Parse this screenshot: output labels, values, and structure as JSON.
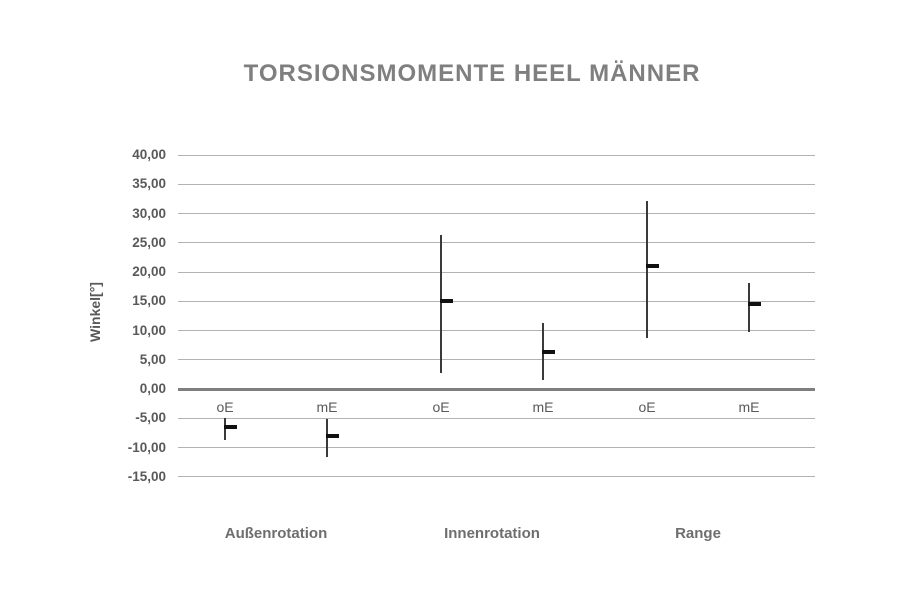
{
  "title": "TORSIONSMOMENTE HEEL MÄNNER",
  "chart_data": {
    "type": "scatter",
    "subtype": "mean-with-error-bars",
    "title": "TORSIONSMOMENTE HEEL MÄNNER",
    "xlabel": "",
    "ylabel": "Winkel[°]",
    "ylim": [
      -15,
      40
    ],
    "grid": "horizontal",
    "legend": "none",
    "yticks": [
      40,
      35,
      30,
      25,
      20,
      15,
      10,
      5,
      0,
      -5,
      -10,
      -15
    ],
    "ytick_labels": [
      "40,00",
      "35,00",
      "30,00",
      "25,00",
      "20,00",
      "15,00",
      "10,00",
      "5,00",
      "0,00",
      "-5,00",
      "-10,00",
      "-15,00"
    ],
    "groups": [
      "Außenrotation",
      "Innenrotation",
      "Range"
    ],
    "conditions": [
      "oE",
      "mE"
    ],
    "series": [
      {
        "group": "Außenrotation",
        "condition": "oE",
        "mean": -6.5,
        "upper": -4.9,
        "lower": -8.8
      },
      {
        "group": "Außenrotation",
        "condition": "mE",
        "mean": -8.0,
        "upper": -5.1,
        "lower": -11.7
      },
      {
        "group": "Innenrotation",
        "condition": "oE",
        "mean": 15.0,
        "upper": 26.4,
        "lower": 2.8
      },
      {
        "group": "Innenrotation",
        "condition": "mE",
        "mean": 6.3,
        "upper": 11.3,
        "lower": 1.5
      },
      {
        "group": "Range",
        "condition": "oE",
        "mean": 21.0,
        "upper": 32.2,
        "lower": 8.8
      },
      {
        "group": "Range",
        "condition": "mE",
        "mean": 14.5,
        "upper": 18.2,
        "lower": 9.7
      }
    ],
    "colors": {
      "title_text": "#7f7f7f",
      "axis_text": "#595959",
      "group_label_text": "#6e6e6e",
      "gridline": "#b2b2b2",
      "zero_line": "#7f7f7f",
      "error_bar": "#3a3a3a",
      "mean_marker": "#111111"
    }
  }
}
